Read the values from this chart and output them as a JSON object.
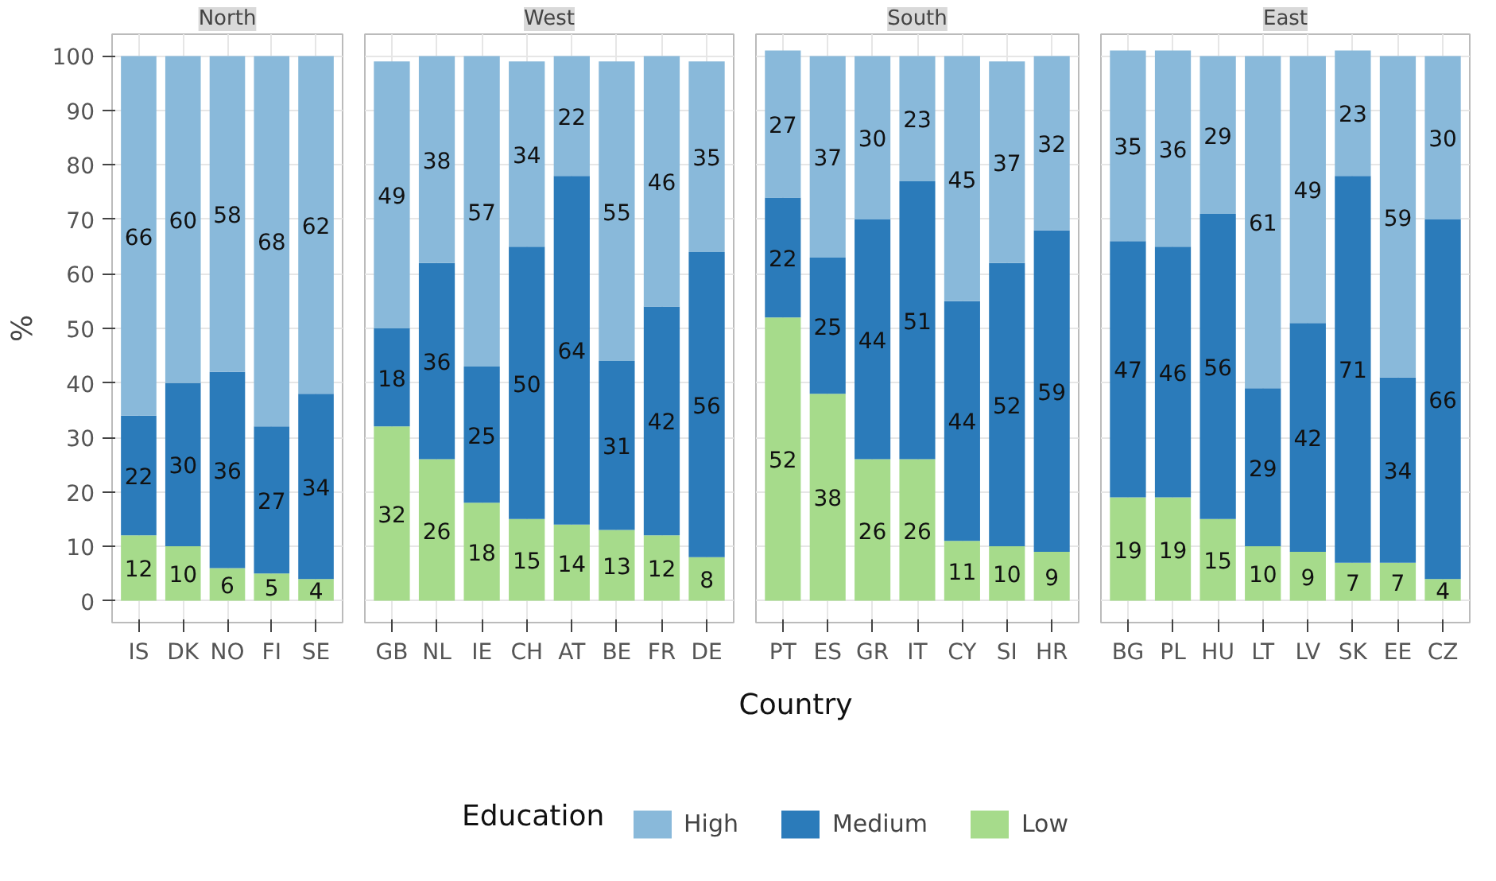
{
  "chart_data": [
    {
      "type": "bar",
      "title": "North",
      "ylabel": "%",
      "legend_title": "Education",
      "legend": "bottom",
      "stacked": true,
      "data_labels": true,
      "grid": true,
      "ylim": [
        -4,
        104
      ],
      "yticks": [
        0,
        10,
        20,
        30,
        40,
        50,
        60,
        70,
        80,
        90,
        100
      ],
      "categories": [
        "IS",
        "DK",
        "NO",
        "FI",
        "SE"
      ],
      "series": [
        {
          "name": "Low",
          "color": "#a6db8b",
          "values": [
            12,
            10,
            6,
            5,
            4
          ]
        },
        {
          "name": "Medium",
          "color": "#2b7bba",
          "values": [
            22,
            30,
            36,
            27,
            34
          ]
        },
        {
          "name": "High",
          "color": "#89b9da",
          "values": [
            66,
            60,
            58,
            68,
            62
          ]
        }
      ]
    },
    {
      "type": "bar",
      "title": "West",
      "stacked": true,
      "data_labels": true,
      "grid": true,
      "tick_labels": "x",
      "ylim": [
        -4,
        104
      ],
      "yticks": [
        0,
        10,
        20,
        30,
        40,
        50,
        60,
        70,
        80,
        90,
        100
      ],
      "categories": [
        "GB",
        "NL",
        "IE",
        "CH",
        "AT",
        "BE",
        "FR",
        "DE"
      ],
      "series": [
        {
          "name": "Low",
          "color": "#a6db8b",
          "values": [
            32,
            26,
            18,
            15,
            14,
            13,
            12,
            8
          ]
        },
        {
          "name": "Medium",
          "color": "#2b7bba",
          "values": [
            18,
            36,
            25,
            50,
            64,
            31,
            42,
            56
          ]
        },
        {
          "name": "High",
          "color": "#89b9da",
          "values": [
            49,
            38,
            57,
            34,
            22,
            55,
            46,
            35
          ]
        }
      ]
    },
    {
      "type": "bar",
      "title": "South",
      "xlabel": "Country",
      "stacked": true,
      "data_labels": true,
      "grid": true,
      "tick_labels": "x",
      "ylim": [
        -4,
        104
      ],
      "yticks": [
        0,
        10,
        20,
        30,
        40,
        50,
        60,
        70,
        80,
        90,
        100
      ],
      "categories": [
        "PT",
        "ES",
        "GR",
        "IT",
        "CY",
        "SI",
        "HR"
      ],
      "series": [
        {
          "name": "Low",
          "color": "#a6db8b",
          "values": [
            52,
            38,
            26,
            26,
            11,
            10,
            9
          ]
        },
        {
          "name": "Medium",
          "color": "#2b7bba",
          "values": [
            22,
            25,
            44,
            51,
            44,
            52,
            59
          ]
        },
        {
          "name": "High",
          "color": "#89b9da",
          "values": [
            27,
            37,
            30,
            23,
            45,
            37,
            32
          ]
        }
      ]
    },
    {
      "type": "bar",
      "title": "East",
      "stacked": true,
      "data_labels": true,
      "grid": true,
      "tick_labels": "x",
      "ylim": [
        -4,
        104
      ],
      "yticks": [
        0,
        10,
        20,
        30,
        40,
        50,
        60,
        70,
        80,
        90,
        100
      ],
      "categories": [
        "BG",
        "PL",
        "HU",
        "LT",
        "LV",
        "SK",
        "EE",
        "CZ"
      ],
      "series": [
        {
          "name": "Low",
          "color": "#a6db8b",
          "values": [
            19,
            19,
            15,
            10,
            9,
            7,
            7,
            4
          ]
        },
        {
          "name": "Medium",
          "color": "#2b7bba",
          "values": [
            47,
            46,
            56,
            29,
            42,
            71,
            34,
            66
          ]
        },
        {
          "name": "High",
          "color": "#89b9da",
          "values": [
            35,
            36,
            29,
            61,
            49,
            23,
            59,
            30
          ]
        }
      ]
    }
  ]
}
